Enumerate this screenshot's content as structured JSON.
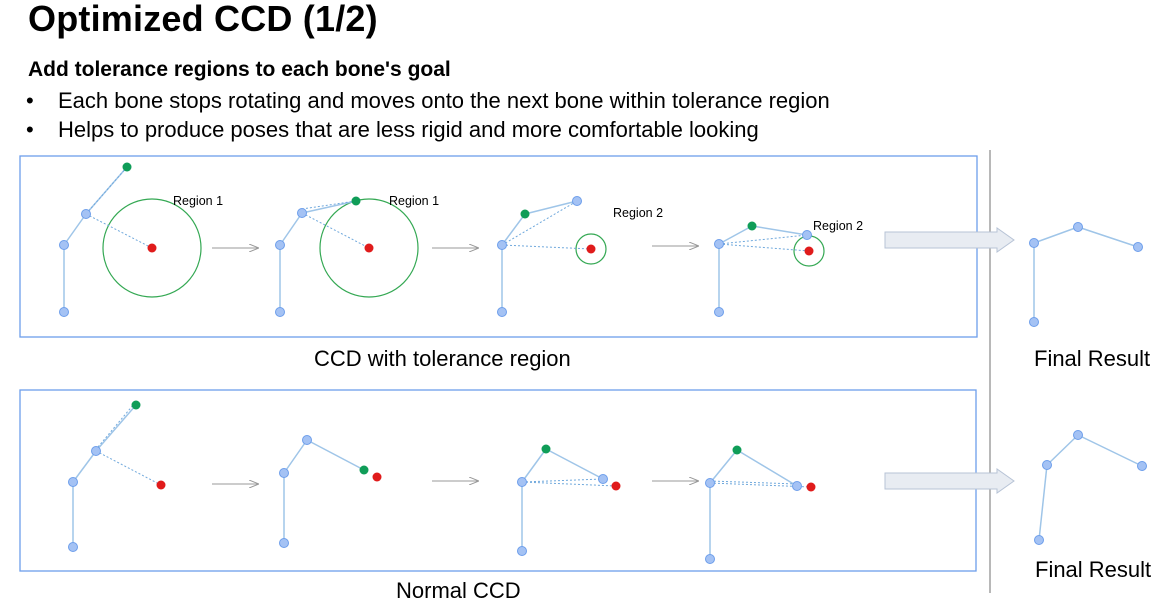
{
  "title": "Optimized CCD (1/2)",
  "subtitle": "Add tolerance regions to each bone's goal",
  "bullets": [
    "Each bone stops rotating and moves onto the next bone within tolerance region",
    "Helps to produce poses that are less rigid and more comfortable looking"
  ],
  "bullet_symbol": "•",
  "labels": {
    "region1": "Region 1",
    "region2": "Region 2"
  },
  "captions": {
    "top": "CCD with tolerance region",
    "bottom": "Normal CCD",
    "final_top": "Final Result",
    "final_bottom": "Final Result"
  },
  "colors": {
    "joint": "#a4c2f4",
    "joint_stroke": "#6d9eeb",
    "bone": "#9fc5e8",
    "effector": "#0f9d58",
    "target": "#e01b1b",
    "tolerance_region": "#34a853",
    "panel_border": "#6d9eeb",
    "arrow": "#999999",
    "big_arrow_fill": "#e8ecf2",
    "big_arrow_stroke": "#b7c3d6",
    "divider": "#b8b8b8"
  }
}
